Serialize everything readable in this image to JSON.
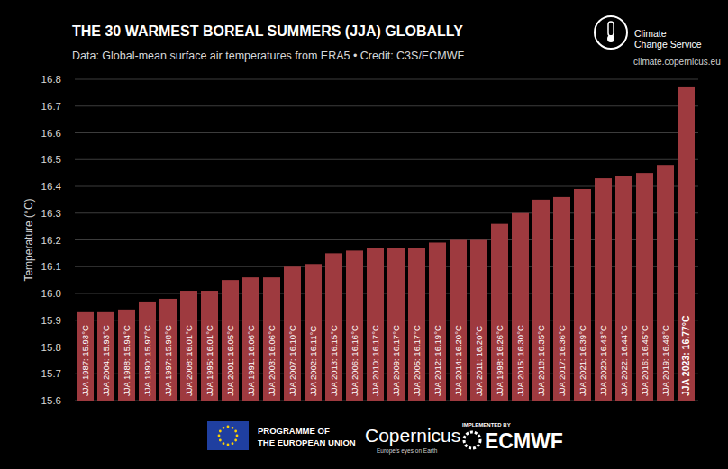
{
  "chart_data": {
    "type": "bar",
    "title": "THE 30 WARMEST BOREAL SUMMERS (JJA) GLOBALLY",
    "subtitle": "Data: Global-mean surface air temperatures from ERA5 • Credit: C3S/ECMWF",
    "y_label": "Temperature (°C)",
    "categories": [
      "JJA 1987: 15.93°C",
      "JJA 2004: 15.93°C",
      "JJA 1988: 15.94°C",
      "JJA 1990: 15.97°C",
      "JJA 1997: 15.98°C",
      "JJA 2008: 16.01°C",
      "JJA 1995: 16.01°C",
      "JJA 2001: 16.05°C",
      "JJA 1991: 16.06°C",
      "JJA 2003: 16.06°C",
      "JJA 2007: 16.10°C",
      "JJA 2002: 16.11°C",
      "JJA 2013: 16.15°C",
      "JJA 2006: 16.16°C",
      "JJA 2010: 16.17°C",
      "JJA 2009: 16.17°C",
      "JJA 2005: 16.17°C",
      "JJA 2012: 16.19°C",
      "JJA 2014: 16.20°C",
      "JJA 2011: 16.20°C",
      "JJA 1998: 16.26°C",
      "JJA 2015: 16.30°C",
      "JJA 2018: 16.35°C",
      "JJA 2017: 16.36°C",
      "JJA 2021: 16.39°C",
      "JJA 2020: 16.43°C",
      "JJA 2022: 16.44°C",
      "JJA 2016: 16.45°C",
      "JJA 2019: 16.48°C",
      "JJA 2023: 16.77°C"
    ],
    "values": [
      15.93,
      15.93,
      15.94,
      15.97,
      15.98,
      16.01,
      16.01,
      16.05,
      16.06,
      16.06,
      16.1,
      16.11,
      16.15,
      16.16,
      16.17,
      16.17,
      16.17,
      16.19,
      16.2,
      16.2,
      16.26,
      16.3,
      16.35,
      16.36,
      16.39,
      16.43,
      16.44,
      16.45,
      16.48,
      16.77
    ],
    "color": "#9e3a3f",
    "ylim": [
      15.6,
      16.8
    ],
    "yticks": [
      15.6,
      15.7,
      15.8,
      15.9,
      {
        "value": 16,
        "label": "16.0"
      },
      16.1,
      16.2,
      16.3,
      16.4,
      16.5,
      16.6,
      16.7,
      16.8
    ],
    "grid": true,
    "annotations": [
      "Climate",
      "Change Service",
      "climate.copernicus.eu",
      "PROGRAMME OF",
      "THE EUROPEAN UNION",
      "Copernicus",
      "Europe's eyes on Earth",
      "IMPLEMENTED BY",
      "ECMWF"
    ]
  }
}
